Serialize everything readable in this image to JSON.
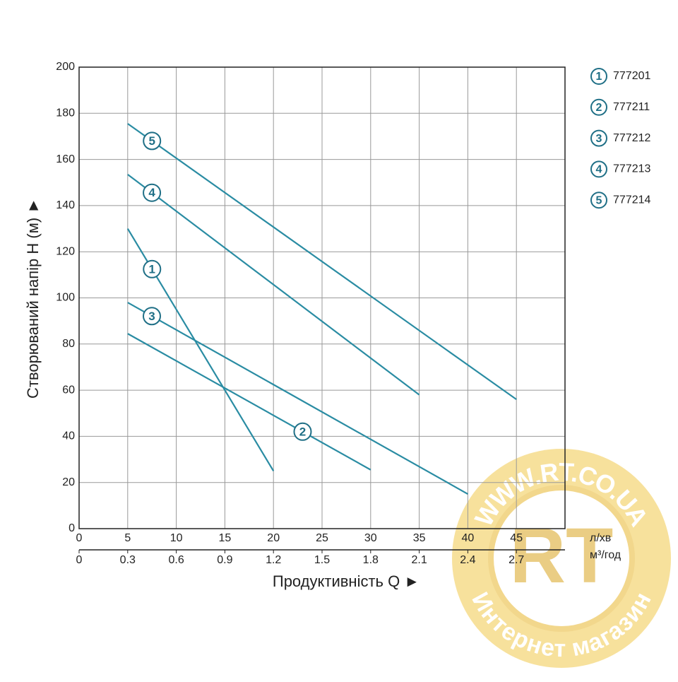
{
  "chart_data": {
    "type": "line",
    "x_label": "Продуктивність Q ►",
    "y_label": "Створюваний напір H (м) ►",
    "x_unit": "л/хв",
    "x2_unit": "м³/год",
    "xlim": [
      0,
      50
    ],
    "xticks": [
      0,
      5,
      10,
      15,
      20,
      25,
      30,
      35,
      40,
      45
    ],
    "x2lim": [
      0,
      3
    ],
    "x2ticks": [
      0,
      0.3,
      0.6,
      0.9,
      1.2,
      1.5,
      1.8,
      2.1,
      2.4,
      2.7
    ],
    "ylim": [
      0,
      200
    ],
    "yticks": [
      0,
      20,
      40,
      60,
      80,
      100,
      120,
      140,
      160,
      180,
      200
    ],
    "grid": true,
    "series": [
      {
        "name": "777201",
        "label": "1",
        "color": "#2a8ca3",
        "x": [
          5,
          20
        ],
        "values": [
          130,
          25
        ]
      },
      {
        "name": "777211",
        "label": "2",
        "color": "#2a8ca3",
        "x": [
          5,
          30
        ],
        "values": [
          84.5,
          25.5
        ]
      },
      {
        "name": "777212",
        "label": "3",
        "color": "#2a8ca3",
        "x": [
          5,
          40
        ],
        "values": [
          98,
          15
        ]
      },
      {
        "name": "777213",
        "label": "4",
        "color": "#2a8ca3",
        "x": [
          5,
          35
        ],
        "values": [
          153.5,
          58
        ]
      },
      {
        "name": "777214",
        "label": "5",
        "color": "#2a8ca3",
        "x": [
          5,
          45
        ],
        "values": [
          175.5,
          56
        ]
      }
    ]
  },
  "watermark": {
    "url": "WWW.RT.CO.UA",
    "logo": "RT",
    "caption": "Интернет магазин"
  }
}
